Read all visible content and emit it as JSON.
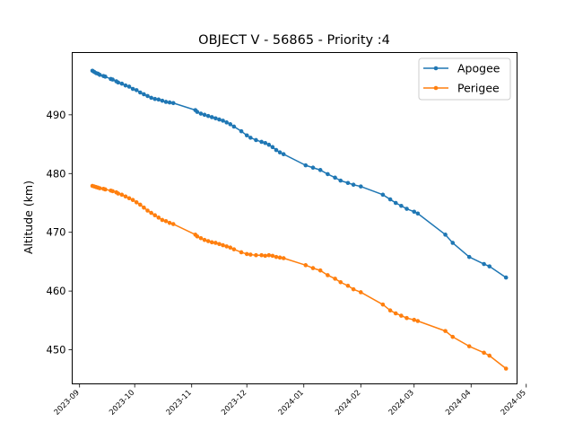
{
  "chart_data": {
    "type": "line",
    "title": "OBJECT V - 56865 - Priority :4",
    "xlabel": "",
    "ylabel": "Altitude (km)",
    "xlim": [
      "2023-08-28",
      "2024-04-26"
    ],
    "ylim": [
      444.2,
      500.6
    ],
    "grid": false,
    "legend_position": "top-right",
    "x_tick_labels": [
      "2023-09",
      "2023-10",
      "2023-11",
      "2023-12",
      "2024-01",
      "2024-02",
      "2024-03",
      "2024-04",
      "2024-05"
    ],
    "y_ticks": [
      450,
      460,
      470,
      480,
      490
    ],
    "series": [
      {
        "name": "Apogee",
        "color": "#1f77b4",
        "points": [
          [
            "2023-09-08",
            497.5
          ],
          [
            "2023-09-09",
            497.3
          ],
          [
            "2023-09-10",
            497.1
          ],
          [
            "2023-09-11",
            497.0
          ],
          [
            "2023-09-12",
            496.8
          ],
          [
            "2023-09-14",
            496.6
          ],
          [
            "2023-09-15",
            496.5
          ],
          [
            "2023-09-18",
            496.1
          ],
          [
            "2023-09-19",
            496.0
          ],
          [
            "2023-09-21",
            495.7
          ],
          [
            "2023-09-22",
            495.5
          ],
          [
            "2023-09-24",
            495.3
          ],
          [
            "2023-09-26",
            495.0
          ],
          [
            "2023-09-28",
            494.8
          ],
          [
            "2023-09-30",
            494.4
          ],
          [
            "2023-10-02",
            494.2
          ],
          [
            "2023-10-04",
            493.8
          ],
          [
            "2023-10-06",
            493.5
          ],
          [
            "2023-10-08",
            493.2
          ],
          [
            "2023-10-10",
            492.9
          ],
          [
            "2023-10-12",
            492.7
          ],
          [
            "2023-10-14",
            492.6
          ],
          [
            "2023-10-16",
            492.4
          ],
          [
            "2023-10-18",
            492.2
          ],
          [
            "2023-10-20",
            492.1
          ],
          [
            "2023-10-22",
            492.0
          ],
          [
            "2023-11-03",
            490.8
          ],
          [
            "2023-11-04",
            490.5
          ],
          [
            "2023-11-06",
            490.2
          ],
          [
            "2023-11-08",
            490.0
          ],
          [
            "2023-11-10",
            489.8
          ],
          [
            "2023-11-12",
            489.6
          ],
          [
            "2023-11-14",
            489.4
          ],
          [
            "2023-11-16",
            489.2
          ],
          [
            "2023-11-18",
            489.0
          ],
          [
            "2023-11-20",
            488.7
          ],
          [
            "2023-11-22",
            488.4
          ],
          [
            "2023-11-24",
            488.0
          ],
          [
            "2023-11-28",
            487.2
          ],
          [
            "2023-12-01",
            486.5
          ],
          [
            "2023-12-03",
            486.1
          ],
          [
            "2023-12-06",
            485.7
          ],
          [
            "2023-12-09",
            485.4
          ],
          [
            "2023-12-11",
            485.2
          ],
          [
            "2023-12-13",
            484.9
          ],
          [
            "2023-12-15",
            484.5
          ],
          [
            "2023-12-17",
            484.0
          ],
          [
            "2023-12-19",
            483.6
          ],
          [
            "2023-12-21",
            483.3
          ],
          [
            "2024-01-02",
            481.4
          ],
          [
            "2024-01-06",
            481.0
          ],
          [
            "2024-01-10",
            480.6
          ],
          [
            "2024-01-14",
            479.9
          ],
          [
            "2024-01-18",
            479.3
          ],
          [
            "2024-01-21",
            478.8
          ],
          [
            "2024-01-25",
            478.4
          ],
          [
            "2024-01-28",
            478.1
          ],
          [
            "2024-02-01",
            477.8
          ],
          [
            "2024-02-13",
            476.4
          ],
          [
            "2024-02-17",
            475.6
          ],
          [
            "2024-02-20",
            475.0
          ],
          [
            "2024-02-23",
            474.5
          ],
          [
            "2024-02-26",
            474.0
          ],
          [
            "2024-03-01",
            473.5
          ],
          [
            "2024-03-03",
            473.2
          ],
          [
            "2024-03-18",
            469.6
          ],
          [
            "2024-03-22",
            468.2
          ],
          [
            "2024-03-31",
            465.8
          ],
          [
            "2024-04-08",
            464.6
          ],
          [
            "2024-04-11",
            464.2
          ],
          [
            "2024-04-20",
            462.3
          ]
        ]
      },
      {
        "name": "Perigee",
        "color": "#ff7f0e",
        "points": [
          [
            "2023-09-08",
            477.9
          ],
          [
            "2023-09-09",
            477.8
          ],
          [
            "2023-09-10",
            477.7
          ],
          [
            "2023-09-11",
            477.6
          ],
          [
            "2023-09-12",
            477.5
          ],
          [
            "2023-09-14",
            477.4
          ],
          [
            "2023-09-15",
            477.3
          ],
          [
            "2023-09-18",
            477.1
          ],
          [
            "2023-09-19",
            477.0
          ],
          [
            "2023-09-21",
            476.8
          ],
          [
            "2023-09-22",
            476.6
          ],
          [
            "2023-09-24",
            476.4
          ],
          [
            "2023-09-26",
            476.1
          ],
          [
            "2023-09-28",
            475.8
          ],
          [
            "2023-09-30",
            475.5
          ],
          [
            "2023-10-02",
            475.1
          ],
          [
            "2023-10-04",
            474.7
          ],
          [
            "2023-10-06",
            474.2
          ],
          [
            "2023-10-08",
            473.7
          ],
          [
            "2023-10-10",
            473.3
          ],
          [
            "2023-10-12",
            472.9
          ],
          [
            "2023-10-14",
            472.5
          ],
          [
            "2023-10-16",
            472.1
          ],
          [
            "2023-10-18",
            471.9
          ],
          [
            "2023-10-20",
            471.6
          ],
          [
            "2023-10-22",
            471.4
          ],
          [
            "2023-11-03",
            469.6
          ],
          [
            "2023-11-04",
            469.3
          ],
          [
            "2023-11-06",
            469.0
          ],
          [
            "2023-11-08",
            468.7
          ],
          [
            "2023-11-10",
            468.5
          ],
          [
            "2023-11-12",
            468.3
          ],
          [
            "2023-11-14",
            468.2
          ],
          [
            "2023-11-16",
            468.0
          ],
          [
            "2023-11-18",
            467.8
          ],
          [
            "2023-11-20",
            467.6
          ],
          [
            "2023-11-22",
            467.4
          ],
          [
            "2023-11-24",
            467.1
          ],
          [
            "2023-11-28",
            466.6
          ],
          [
            "2023-12-01",
            466.3
          ],
          [
            "2023-12-03",
            466.2
          ],
          [
            "2023-12-06",
            466.1
          ],
          [
            "2023-12-09",
            466.1
          ],
          [
            "2023-12-11",
            466.0
          ],
          [
            "2023-12-13",
            466.1
          ],
          [
            "2023-12-15",
            466.0
          ],
          [
            "2023-12-17",
            465.8
          ],
          [
            "2023-12-19",
            465.7
          ],
          [
            "2023-12-21",
            465.6
          ],
          [
            "2024-01-02",
            464.4
          ],
          [
            "2024-01-06",
            463.9
          ],
          [
            "2024-01-10",
            463.5
          ],
          [
            "2024-01-14",
            462.7
          ],
          [
            "2024-01-18",
            462.1
          ],
          [
            "2024-01-21",
            461.5
          ],
          [
            "2024-01-25",
            460.9
          ],
          [
            "2024-01-28",
            460.3
          ],
          [
            "2024-02-01",
            459.8
          ],
          [
            "2024-02-13",
            457.7
          ],
          [
            "2024-02-17",
            456.7
          ],
          [
            "2024-02-20",
            456.2
          ],
          [
            "2024-02-23",
            455.8
          ],
          [
            "2024-02-26",
            455.4
          ],
          [
            "2024-03-01",
            455.1
          ],
          [
            "2024-03-03",
            454.9
          ],
          [
            "2024-03-18",
            453.2
          ],
          [
            "2024-03-22",
            452.2
          ],
          [
            "2024-03-31",
            450.6
          ],
          [
            "2024-04-08",
            449.5
          ],
          [
            "2024-04-11",
            449.0
          ],
          [
            "2024-04-20",
            446.8
          ]
        ]
      }
    ]
  }
}
